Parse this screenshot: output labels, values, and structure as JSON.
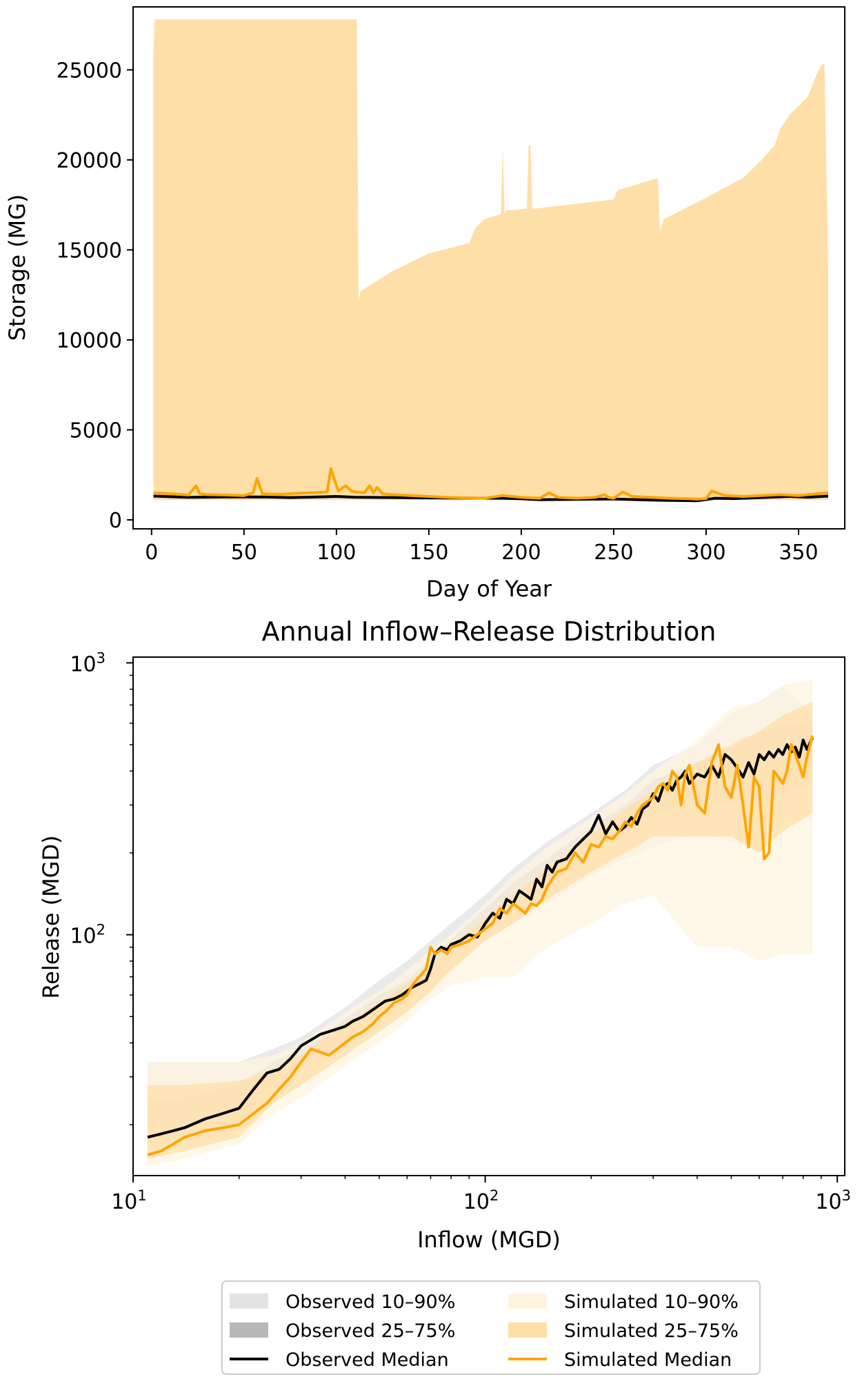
{
  "chart_data": [
    {
      "type": "area",
      "title": "",
      "xlabel": "Day of Year",
      "ylabel": "Storage (MG)",
      "xlim": [
        -10,
        375
      ],
      "ylim": [
        -500,
        28500
      ],
      "xticks": [
        0,
        50,
        100,
        150,
        200,
        250,
        300,
        350
      ],
      "xtick_labels": [
        "0",
        "50",
        "100",
        "150",
        "200",
        "250",
        "300",
        "350"
      ],
      "yticks": [
        0,
        5000,
        10000,
        15000,
        20000,
        25000
      ],
      "ytick_labels": [
        "0",
        "5000",
        "10000",
        "15000",
        "20000",
        "25000"
      ],
      "grid": false,
      "series": [
        {
          "name": "Simulated 10–90%",
          "color": "#fff4e0",
          "x": [
            1,
            2,
            6,
            112,
            366
          ],
          "lower": [
            26000,
            27800,
            27800,
            27800,
            27800
          ],
          "upper": [
            27800,
            27800,
            27800,
            27800,
            27800
          ]
        },
        {
          "name": "Simulated 25–75%",
          "color": "#ffdfa8",
          "x": [
            1,
            2,
            6,
            111,
            112,
            113,
            130,
            150,
            165,
            172,
            175,
            180,
            189,
            190,
            191,
            192,
            195,
            203,
            204,
            205,
            206,
            208,
            250,
            252,
            255,
            274,
            275,
            277,
            300,
            320,
            330,
            337,
            340,
            345,
            350,
            355,
            360,
            362,
            364,
            366
          ],
          "lower": [
            1100,
            1100,
            1100,
            1100,
            1100,
            1100,
            1100,
            1100,
            1100,
            1100,
            1100,
            1100,
            1100,
            1100,
            1100,
            1100,
            1100,
            1100,
            1100,
            1100,
            1100,
            1100,
            1100,
            1100,
            1100,
            1100,
            1100,
            1100,
            1100,
            1100,
            1100,
            1100,
            1100,
            1100,
            1100,
            1100,
            1100,
            1100,
            1100,
            1100
          ],
          "upper": [
            26000,
            27800,
            27800,
            27800,
            12200,
            12700,
            13800,
            14800,
            15200,
            15400,
            16200,
            16700,
            17000,
            20700,
            17000,
            17200,
            17200,
            17300,
            20800,
            20800,
            17300,
            17300,
            17800,
            18300,
            18400,
            19000,
            16000,
            16700,
            17900,
            19000,
            20000,
            20800,
            21700,
            22500,
            23000,
            23500,
            24800,
            25200,
            25400,
            14000
          ]
        }
      ],
      "lines": [
        {
          "name": "Observed Median",
          "color": "#000000",
          "x": [
            1,
            20,
            40,
            60,
            75,
            90,
            100,
            110,
            130,
            150,
            170,
            190,
            200,
            210,
            230,
            250,
            270,
            280,
            295,
            305,
            315,
            330,
            345,
            355,
            366
          ],
          "y": [
            1320,
            1250,
            1270,
            1270,
            1240,
            1270,
            1300,
            1260,
            1240,
            1220,
            1210,
            1200,
            1170,
            1120,
            1140,
            1160,
            1100,
            1080,
            1060,
            1200,
            1180,
            1240,
            1300,
            1260,
            1320
          ]
        },
        {
          "name": "Simulated Median",
          "color": "#ffa500",
          "x": [
            1,
            10,
            20,
            24,
            26,
            30,
            40,
            50,
            55,
            57,
            60,
            70,
            80,
            90,
            95,
            97,
            99,
            101,
            105,
            108,
            110,
            115,
            118,
            120,
            122,
            125,
            130,
            140,
            150,
            160,
            170,
            180,
            190,
            200,
            210,
            215,
            220,
            230,
            240,
            245,
            247,
            250,
            255,
            260,
            270,
            280,
            290,
            295,
            300,
            303,
            310,
            320,
            330,
            340,
            350,
            360,
            366
          ],
          "y": [
            1500,
            1450,
            1380,
            1900,
            1450,
            1400,
            1380,
            1350,
            1500,
            2300,
            1450,
            1420,
            1480,
            1520,
            1550,
            2850,
            2200,
            1600,
            1900,
            1600,
            1550,
            1500,
            1900,
            1500,
            1800,
            1450,
            1400,
            1350,
            1300,
            1250,
            1220,
            1200,
            1350,
            1250,
            1200,
            1500,
            1250,
            1200,
            1250,
            1400,
            1250,
            1200,
            1550,
            1300,
            1250,
            1200,
            1180,
            1150,
            1180,
            1600,
            1350,
            1300,
            1350,
            1400,
            1350,
            1450,
            1500
          ]
        }
      ]
    },
    {
      "type": "line",
      "title": "Annual Inflow–Release Distribution",
      "xlabel": "Inflow (MGD)",
      "ylabel": "Release (MGD)",
      "xscale": "log",
      "yscale": "log",
      "xlim": [
        10,
        1050
      ],
      "ylim": [
        13,
        1050
      ],
      "xticks": [
        10,
        100,
        1000
      ],
      "xtick_labels": [
        "10^1",
        "10^2",
        "10^3"
      ],
      "yticks": [
        100,
        1000
      ],
      "ytick_labels": [
        "10^2",
        "10^3"
      ],
      "grid": false,
      "legend": "bottom-center",
      "bands": [
        {
          "name": "Observed 10–90%",
          "color": "#e3e3e3",
          "x": [
            11,
            14,
            20,
            25,
            30,
            35,
            40,
            50,
            60,
            70,
            80,
            100,
            120,
            150,
            200,
            250,
            300,
            400,
            500,
            600,
            700,
            850
          ],
          "lower": [
            16,
            17,
            19,
            26,
            30,
            34,
            38,
            45,
            52,
            62,
            75,
            95,
            110,
            130,
            165,
            190,
            210,
            240,
            220,
            210,
            260,
            270
          ],
          "upper": [
            34,
            34,
            34,
            38,
            42,
            48,
            54,
            68,
            80,
            95,
            110,
            140,
            175,
            220,
            280,
            340,
            420,
            500,
            650,
            720,
            820,
            650
          ]
        },
        {
          "name": "Observed 25–75%",
          "color": "#b8b8b8",
          "x": [
            11,
            14,
            20,
            25,
            30,
            35,
            40,
            50,
            60,
            70,
            80,
            100,
            120,
            150,
            200,
            250,
            300,
            400,
            500,
            600,
            700,
            850
          ],
          "lower": [
            17,
            18,
            20,
            28,
            32,
            37,
            41,
            48,
            56,
            68,
            82,
            105,
            125,
            150,
            200,
            240,
            280,
            300,
            300,
            280,
            330,
            360
          ],
          "upper": [
            25,
            25,
            28,
            34,
            38,
            43,
            49,
            60,
            68,
            82,
            96,
            125,
            155,
            190,
            250,
            300,
            370,
            430,
            480,
            550,
            600,
            580
          ]
        },
        {
          "name": "Simulated 10–90%",
          "color": "#fff4e0",
          "x": [
            11,
            14,
            20,
            25,
            30,
            35,
            40,
            50,
            60,
            70,
            80,
            100,
            120,
            150,
            200,
            250,
            300,
            400,
            500,
            600,
            700,
            850
          ],
          "lower": [
            14,
            15,
            17,
            22,
            25,
            29,
            33,
            40,
            48,
            58,
            65,
            70,
            70,
            90,
            110,
            130,
            140,
            90,
            90,
            80,
            85,
            85
          ],
          "upper": [
            34,
            34,
            34,
            36,
            40,
            46,
            52,
            62,
            74,
            88,
            100,
            130,
            165,
            210,
            270,
            330,
            400,
            520,
            680,
            720,
            830,
            870
          ]
        },
        {
          "name": "Simulated 25–75%",
          "color": "#ffdfa8",
          "x": [
            11,
            14,
            20,
            25,
            30,
            35,
            40,
            50,
            60,
            70,
            80,
            100,
            120,
            150,
            200,
            250,
            300,
            400,
            500,
            600,
            700,
            850
          ],
          "lower": [
            15,
            16,
            18,
            24,
            28,
            32,
            36,
            44,
            52,
            62,
            74,
            95,
            110,
            135,
            170,
            200,
            230,
            230,
            230,
            200,
            240,
            280
          ],
          "upper": [
            28,
            28,
            29,
            32,
            36,
            42,
            47,
            56,
            66,
            78,
            90,
            115,
            140,
            175,
            235,
            290,
            340,
            430,
            500,
            560,
            640,
            720
          ]
        }
      ],
      "series": [
        {
          "name": "Observed Median",
          "color": "#000000",
          "x": [
            11,
            12,
            13,
            14,
            16,
            18,
            20,
            22,
            24,
            26,
            28,
            30,
            32,
            34,
            36,
            38,
            40,
            42,
            45,
            48,
            50,
            52,
            55,
            58,
            60,
            62,
            65,
            68,
            70,
            72,
            75,
            78,
            80,
            85,
            90,
            95,
            100,
            105,
            110,
            115,
            120,
            125,
            130,
            135,
            140,
            145,
            150,
            155,
            160,
            170,
            180,
            190,
            200,
            210,
            220,
            230,
            240,
            250,
            260,
            270,
            280,
            290,
            300,
            310,
            320,
            330,
            340,
            350,
            360,
            370,
            380,
            400,
            420,
            440,
            460,
            480,
            500,
            520,
            540,
            560,
            580,
            600,
            620,
            640,
            660,
            680,
            700,
            720,
            740,
            760,
            780,
            800,
            820,
            850
          ],
          "y": [
            18,
            18.5,
            19,
            19.5,
            21,
            22,
            23,
            27,
            31,
            32,
            35,
            39,
            41,
            43,
            44,
            45,
            46,
            48,
            50,
            53,
            55,
            57,
            58,
            60,
            62,
            64,
            66,
            68,
            75,
            85,
            90,
            88,
            92,
            95,
            100,
            98,
            110,
            120,
            115,
            135,
            130,
            145,
            140,
            135,
            160,
            150,
            180,
            170,
            185,
            190,
            210,
            225,
            240,
            275,
            235,
            260,
            240,
            250,
            270,
            255,
            290,
            300,
            330,
            310,
            350,
            360,
            340,
            370,
            380,
            400,
            360,
            390,
            380,
            420,
            380,
            460,
            440,
            410,
            380,
            430,
            390,
            460,
            440,
            470,
            450,
            480,
            460,
            500,
            470,
            490,
            450,
            520,
            480,
            530
          ]
        },
        {
          "name": "Simulated Median",
          "color": "#ffa500",
          "x": [
            11,
            12,
            13,
            14,
            16,
            18,
            20,
            22,
            24,
            26,
            28,
            30,
            32,
            34,
            36,
            38,
            40,
            42,
            45,
            48,
            50,
            52,
            55,
            58,
            60,
            62,
            65,
            68,
            70,
            72,
            75,
            78,
            80,
            85,
            90,
            95,
            100,
            105,
            110,
            115,
            120,
            125,
            130,
            135,
            140,
            145,
            150,
            155,
            160,
            170,
            180,
            190,
            200,
            210,
            220,
            230,
            240,
            250,
            260,
            270,
            280,
            290,
            300,
            310,
            320,
            330,
            340,
            350,
            360,
            370,
            380,
            400,
            420,
            440,
            460,
            480,
            500,
            520,
            540,
            560,
            580,
            600,
            620,
            640,
            660,
            680,
            700,
            720,
            740,
            760,
            780,
            800,
            820,
            850
          ],
          "y": [
            15.5,
            16,
            17,
            18,
            19,
            19.5,
            20,
            22,
            24,
            27,
            30,
            34,
            38,
            37,
            36,
            38,
            40,
            42,
            44,
            47,
            50,
            52,
            56,
            58,
            60,
            65,
            70,
            75,
            90,
            85,
            88,
            85,
            90,
            92,
            95,
            100,
            105,
            110,
            125,
            120,
            130,
            125,
            120,
            130,
            128,
            135,
            150,
            160,
            170,
            175,
            200,
            185,
            215,
            210,
            230,
            225,
            240,
            260,
            250,
            280,
            300,
            310,
            320,
            350,
            360,
            340,
            400,
            380,
            300,
            390,
            420,
            300,
            280,
            430,
            500,
            350,
            320,
            420,
            300,
            210,
            380,
            350,
            190,
            200,
            400,
            380,
            360,
            400,
            500,
            460,
            420,
            380,
            450,
            540
          ]
        }
      ]
    }
  ],
  "legend": {
    "items": [
      {
        "label": "Observed 10–90%",
        "kind": "patch",
        "color": "#e3e3e3"
      },
      {
        "label": "Observed 25–75%",
        "kind": "patch",
        "color": "#b8b8b8"
      },
      {
        "label": "Observed Median",
        "kind": "line",
        "color": "#000000"
      },
      {
        "label": "Simulated 10–90%",
        "kind": "patch",
        "color": "#fff4e0"
      },
      {
        "label": "Simulated 25–75%",
        "kind": "patch",
        "color": "#ffdfa8"
      },
      {
        "label": "Simulated Median",
        "kind": "line",
        "color": "#ffa500"
      }
    ]
  }
}
